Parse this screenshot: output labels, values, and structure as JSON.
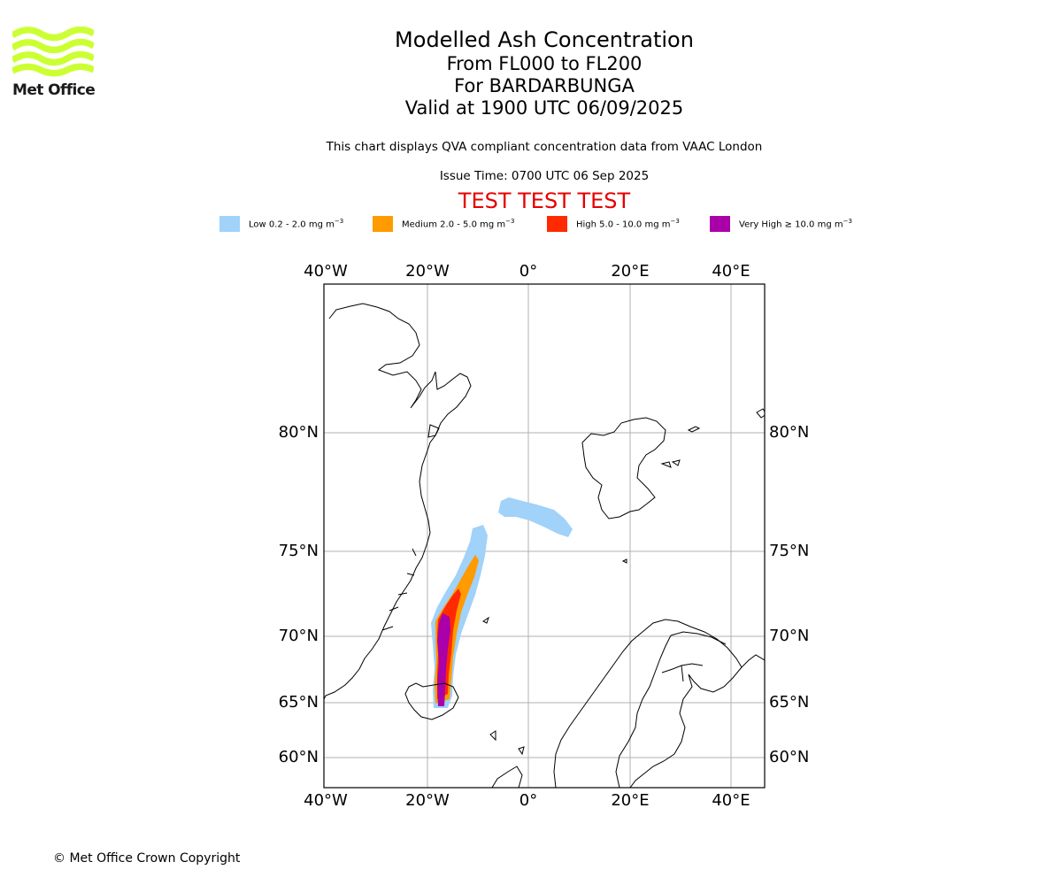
{
  "organization": {
    "name": "Met Office",
    "logo_color": "#ccff33"
  },
  "titles": {
    "main": "Modelled Ash Concentration",
    "flight_levels": "From FL000 to FL200",
    "volcano": "For BARDARBUNGA",
    "valid_time": "Valid at 1900 UTC 06/09/2025"
  },
  "description": "This chart displays QVA compliant concentration data from VAAC London",
  "issue_time": "Issue Time: 0700 UTC 06 Sep 2025",
  "test_banner": "TEST TEST TEST",
  "legend": [
    {
      "label": "Low 0.2 - 2.0 mg m",
      "unit_exp": "−3",
      "color": "#a0d2fa"
    },
    {
      "label": "Medium 2.0 - 5.0 mg m",
      "unit_exp": "−3",
      "color": "#ff9a00"
    },
    {
      "label": "High 5.0 - 10.0 mg m",
      "unit_exp": "−3",
      "color": "#ff2a00"
    },
    {
      "label": "Very High  ≥  10.0 mg m",
      "unit_exp": "−3",
      "color": "#aa00aa"
    }
  ],
  "map": {
    "lon_labels": [
      "40°W",
      "20°W",
      "0°",
      "20°E",
      "40°E"
    ],
    "lat_labels": [
      "80°N",
      "75°N",
      "70°N",
      "65°N",
      "60°N"
    ],
    "gridlines": true
  },
  "copyright": "© Met Office Crown Copyright"
}
